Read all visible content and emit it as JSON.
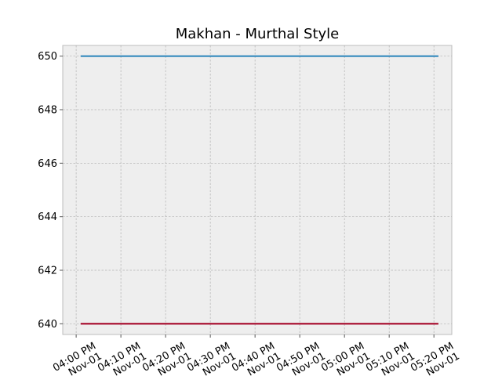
{
  "chart_data": {
    "type": "line",
    "title": "Makhan - Murthal Style",
    "xlabel": "",
    "ylabel": "",
    "x_ticks": [
      {
        "line1": "04:00 PM",
        "line2": "Nov-01"
      },
      {
        "line1": "04:10 PM",
        "line2": "Nov-01"
      },
      {
        "line1": "04:20 PM",
        "line2": "Nov-01"
      },
      {
        "line1": "04:30 PM",
        "line2": "Nov-01"
      },
      {
        "line1": "04:40 PM",
        "line2": "Nov-01"
      },
      {
        "line1": "04:50 PM",
        "line2": "Nov-01"
      },
      {
        "line1": "05:00 PM",
        "line2": "Nov-01"
      },
      {
        "line1": "05:10 PM",
        "line2": "Nov-01"
      },
      {
        "line1": "05:20 PM",
        "line2": "Nov-01"
      }
    ],
    "y_ticks": [
      640,
      642,
      644,
      646,
      648,
      650
    ],
    "ylim": [
      639.6,
      650.4
    ],
    "xlim": [
      "2000-11-01 15:57",
      "2000-11-01 17:24"
    ],
    "grid": true,
    "series": [
      {
        "color": "#348ABD",
        "x": [
          "2000-11-01 16:01",
          "2000-11-01 17:21"
        ],
        "values": [
          650,
          650
        ]
      },
      {
        "color": "#A60628",
        "x": [
          "2000-11-01 16:01",
          "2000-11-01 17:21"
        ],
        "values": [
          640,
          640
        ]
      }
    ]
  }
}
